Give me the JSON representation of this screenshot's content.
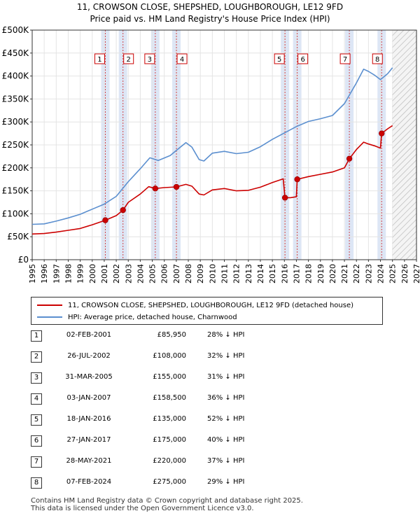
{
  "chart_data": {
    "type": "line",
    "title": "11, CROWSON CLOSE, SHEPSHED, LOUGHBOROUGH, LE12 9FD",
    "subtitle": "Price paid vs. HM Land Registry's House Price Index (HPI)",
    "xlabel": "",
    "ylabel": "",
    "xlim": [
      1995,
      2027
    ],
    "ylim": [
      0,
      500000
    ],
    "x_ticks": [
      "1995",
      "1996",
      "1997",
      "1998",
      "1999",
      "2000",
      "2001",
      "2002",
      "2003",
      "2004",
      "2005",
      "2006",
      "2007",
      "2008",
      "2009",
      "2010",
      "2011",
      "2012",
      "2013",
      "2014",
      "2015",
      "2016",
      "2017",
      "2018",
      "2019",
      "2020",
      "2021",
      "2022",
      "2023",
      "2024",
      "2025",
      "2026",
      "2027"
    ],
    "y_ticks": [
      {
        "value": 0,
        "label": "£0"
      },
      {
        "value": 50000,
        "label": "£50K"
      },
      {
        "value": 100000,
        "label": "£100K"
      },
      {
        "value": 150000,
        "label": "£150K"
      },
      {
        "value": 200000,
        "label": "£200K"
      },
      {
        "value": 250000,
        "label": "£250K"
      },
      {
        "value": 300000,
        "label": "£300K"
      },
      {
        "value": 350000,
        "label": "£350K"
      },
      {
        "value": 400000,
        "label": "£400K"
      },
      {
        "value": 450000,
        "label": "£450K"
      },
      {
        "value": 500000,
        "label": "£500K"
      }
    ],
    "grid": true,
    "forecast_from": 2025.0,
    "series": [
      {
        "name": "HPI: Average price, detached house, Charnwood",
        "color": "#5b8fcf",
        "points": [
          [
            1995.0,
            77000
          ],
          [
            1996.0,
            78000
          ],
          [
            1997.0,
            84000
          ],
          [
            1998.0,
            91000
          ],
          [
            1999.0,
            99000
          ],
          [
            2000.0,
            110000
          ],
          [
            2001.0,
            121000
          ],
          [
            2002.0,
            138000
          ],
          [
            2003.0,
            170000
          ],
          [
            2004.0,
            198000
          ],
          [
            2004.8,
            222000
          ],
          [
            2005.5,
            216000
          ],
          [
            2006.5,
            227000
          ],
          [
            2007.0,
            238000
          ],
          [
            2007.8,
            255000
          ],
          [
            2008.3,
            245000
          ],
          [
            2008.9,
            218000
          ],
          [
            2009.3,
            215000
          ],
          [
            2010.0,
            232000
          ],
          [
            2011.0,
            236000
          ],
          [
            2012.0,
            231000
          ],
          [
            2013.0,
            234000
          ],
          [
            2014.0,
            246000
          ],
          [
            2015.0,
            262000
          ],
          [
            2016.0,
            276000
          ],
          [
            2017.0,
            290000
          ],
          [
            2018.0,
            301000
          ],
          [
            2019.0,
            307000
          ],
          [
            2020.0,
            314000
          ],
          [
            2021.0,
            340000
          ],
          [
            2022.0,
            385000
          ],
          [
            2022.6,
            415000
          ],
          [
            2023.0,
            410000
          ],
          [
            2023.5,
            402000
          ],
          [
            2024.0,
            392000
          ],
          [
            2024.6,
            405000
          ],
          [
            2025.0,
            418000
          ]
        ]
      },
      {
        "name": "11, CROWSON CLOSE, SHEPSHED, LOUGHBOROUGH, LE12 9FD (detached house)",
        "color": "#cc0000",
        "points": [
          [
            1995.0,
            56000
          ],
          [
            1996.0,
            57000
          ],
          [
            1997.0,
            60000
          ],
          [
            1998.0,
            64000
          ],
          [
            1999.0,
            68000
          ],
          [
            2000.0,
            76000
          ],
          [
            2001.09,
            85950
          ],
          [
            2002.0,
            96000
          ],
          [
            2002.56,
            108000
          ],
          [
            2003.0,
            125000
          ],
          [
            2004.0,
            143000
          ],
          [
            2004.7,
            159000
          ],
          [
            2005.25,
            155000
          ],
          [
            2006.0,
            157000
          ],
          [
            2007.01,
            158500
          ],
          [
            2007.8,
            164000
          ],
          [
            2008.3,
            160000
          ],
          [
            2008.9,
            143000
          ],
          [
            2009.3,
            141000
          ],
          [
            2010.0,
            152000
          ],
          [
            2011.0,
            155000
          ],
          [
            2012.0,
            150000
          ],
          [
            2013.0,
            151000
          ],
          [
            2014.0,
            158000
          ],
          [
            2015.0,
            168000
          ],
          [
            2015.9,
            176000
          ],
          [
            2016.05,
            135000
          ],
          [
            2016.5,
            135000
          ],
          [
            2017.0,
            137000
          ],
          [
            2017.07,
            175000
          ],
          [
            2018.0,
            181000
          ],
          [
            2019.0,
            186000
          ],
          [
            2020.0,
            191000
          ],
          [
            2021.0,
            200000
          ],
          [
            2021.41,
            220000
          ],
          [
            2022.0,
            240000
          ],
          [
            2022.6,
            256000
          ],
          [
            2023.0,
            252000
          ],
          [
            2023.5,
            248000
          ],
          [
            2024.0,
            243000
          ],
          [
            2024.1,
            275000
          ],
          [
            2024.6,
            285000
          ],
          [
            2025.0,
            292000
          ]
        ]
      }
    ],
    "sales": [
      {
        "num": "1",
        "x": 2001.09,
        "price": 85950,
        "date": "02-FEB-2001",
        "price_label": "£85,950",
        "hpi": "28% ↓ HPI"
      },
      {
        "num": "2",
        "x": 2002.56,
        "price": 108000,
        "date": "26-JUL-2002",
        "price_label": "£108,000",
        "hpi": "32% ↓ HPI"
      },
      {
        "num": "3",
        "x": 2005.25,
        "price": 155000,
        "date": "31-MAR-2005",
        "price_label": "£155,000",
        "hpi": "31% ↓ HPI"
      },
      {
        "num": "4",
        "x": 2007.01,
        "price": 158500,
        "date": "03-JAN-2007",
        "price_label": "£158,500",
        "hpi": "36% ↓ HPI"
      },
      {
        "num": "5",
        "x": 2016.05,
        "price": 135000,
        "date": "18-JAN-2016",
        "price_label": "£135,000",
        "hpi": "52% ↓ HPI"
      },
      {
        "num": "6",
        "x": 2017.07,
        "price": 175000,
        "date": "27-JAN-2017",
        "price_label": "£175,000",
        "hpi": "40% ↓ HPI"
      },
      {
        "num": "7",
        "x": 2021.41,
        "price": 220000,
        "date": "28-MAY-2021",
        "price_label": "£220,000",
        "hpi": "37% ↓ HPI"
      },
      {
        "num": "8",
        "x": 2024.1,
        "price": 275000,
        "date": "07-FEB-2024",
        "price_label": "£275,000",
        "hpi": "29% ↓ HPI"
      }
    ]
  },
  "legend": {
    "property": "11, CROWSON CLOSE, SHEPSHED, LOUGHBOROUGH, LE12 9FD (detached house)",
    "hpi": "HPI: Average price, detached house, Charnwood"
  },
  "colors": {
    "property": "#cc0000",
    "hpi": "#5b8fcf",
    "highlight": "#dde6f5"
  },
  "footer": {
    "line1": "Contains HM Land Registry data © Crown copyright and database right 2025.",
    "line2": "This data is licensed under the Open Government Licence v3.0."
  }
}
